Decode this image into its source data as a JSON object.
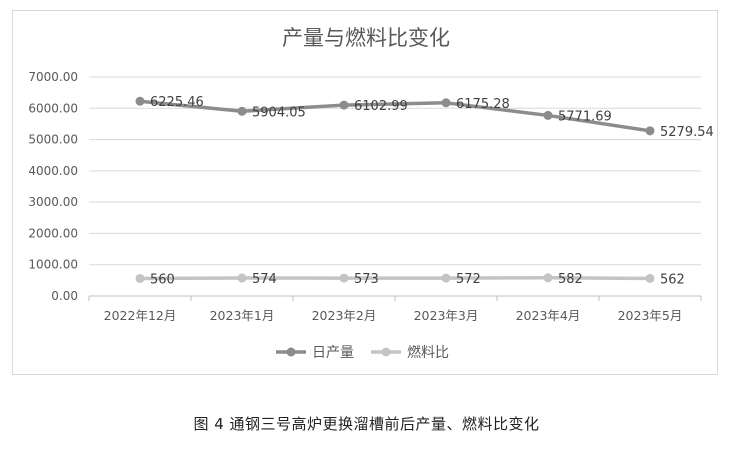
{
  "chart_data": {
    "type": "line",
    "title": "产量与燃料比变化",
    "categories": [
      "2022年12月",
      "2023年1月",
      "2023年2月",
      "2023年3月",
      "2023年4月",
      "2023年5月"
    ],
    "series": [
      {
        "name": "日产量",
        "values": [
          6225.46,
          5904.05,
          6102.99,
          6175.28,
          5771.69,
          5279.54
        ],
        "labels": [
          "6225.46",
          "5904.05",
          "6102.99",
          "6175.28",
          "5771.69",
          "5279.54"
        ],
        "color": "#8c8c8c"
      },
      {
        "name": "燃料比",
        "values": [
          560,
          574,
          573,
          572,
          582,
          562
        ],
        "labels": [
          "560",
          "574",
          "573",
          "572",
          "582",
          "562"
        ],
        "color": "#c4c4c4"
      }
    ],
    "yticks": [
      "0.00",
      "1000.00",
      "2000.00",
      "3000.00",
      "4000.00",
      "5000.00",
      "6000.00",
      "7000.00"
    ],
    "ylim": [
      0,
      7000
    ],
    "grid": true,
    "legend_position": "bottom"
  },
  "caption": "图 4   通钢三号高炉更换溜槽前后产量、燃料比变化"
}
